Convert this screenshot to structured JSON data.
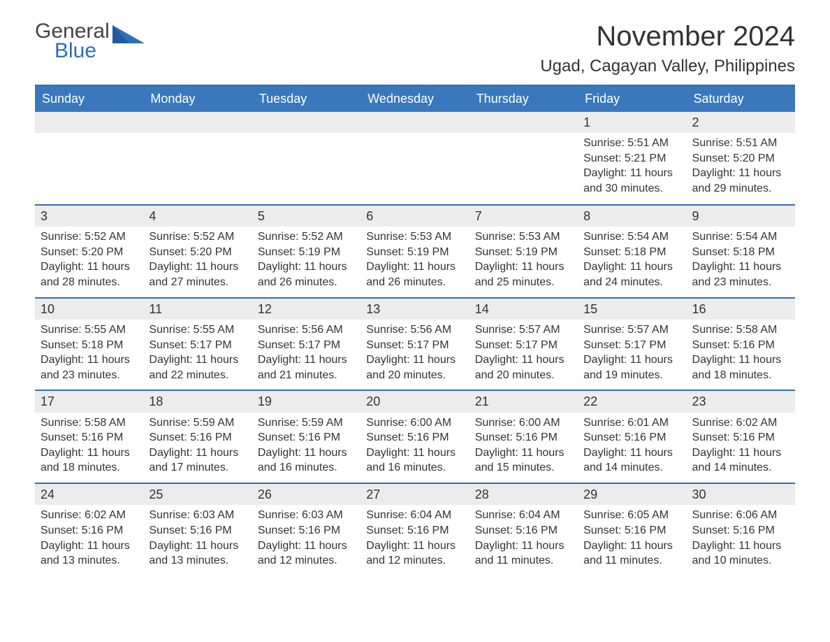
{
  "logo": {
    "text1": "General",
    "text2": "Blue"
  },
  "title": "November 2024",
  "location": "Ugad, Cagayan Valley, Philippines",
  "colors": {
    "header_bg": "#3a78bd",
    "header_text": "#ffffff",
    "border": "#2f6eb5",
    "daynum_bg": "#ececec",
    "text": "#333333",
    "logo_accent": "#2f6eb5"
  },
  "weekdays": [
    "Sunday",
    "Monday",
    "Tuesday",
    "Wednesday",
    "Thursday",
    "Friday",
    "Saturday"
  ],
  "weeks": [
    [
      {
        "empty": true
      },
      {
        "empty": true
      },
      {
        "empty": true
      },
      {
        "empty": true
      },
      {
        "empty": true
      },
      {
        "day": "1",
        "sunrise": "Sunrise: 5:51 AM",
        "sunset": "Sunset: 5:21 PM",
        "daylight": "Daylight: 11 hours and 30 minutes."
      },
      {
        "day": "2",
        "sunrise": "Sunrise: 5:51 AM",
        "sunset": "Sunset: 5:20 PM",
        "daylight": "Daylight: 11 hours and 29 minutes."
      }
    ],
    [
      {
        "day": "3",
        "sunrise": "Sunrise: 5:52 AM",
        "sunset": "Sunset: 5:20 PM",
        "daylight": "Daylight: 11 hours and 28 minutes."
      },
      {
        "day": "4",
        "sunrise": "Sunrise: 5:52 AM",
        "sunset": "Sunset: 5:20 PM",
        "daylight": "Daylight: 11 hours and 27 minutes."
      },
      {
        "day": "5",
        "sunrise": "Sunrise: 5:52 AM",
        "sunset": "Sunset: 5:19 PM",
        "daylight": "Daylight: 11 hours and 26 minutes."
      },
      {
        "day": "6",
        "sunrise": "Sunrise: 5:53 AM",
        "sunset": "Sunset: 5:19 PM",
        "daylight": "Daylight: 11 hours and 26 minutes."
      },
      {
        "day": "7",
        "sunrise": "Sunrise: 5:53 AM",
        "sunset": "Sunset: 5:19 PM",
        "daylight": "Daylight: 11 hours and 25 minutes."
      },
      {
        "day": "8",
        "sunrise": "Sunrise: 5:54 AM",
        "sunset": "Sunset: 5:18 PM",
        "daylight": "Daylight: 11 hours and 24 minutes."
      },
      {
        "day": "9",
        "sunrise": "Sunrise: 5:54 AM",
        "sunset": "Sunset: 5:18 PM",
        "daylight": "Daylight: 11 hours and 23 minutes."
      }
    ],
    [
      {
        "day": "10",
        "sunrise": "Sunrise: 5:55 AM",
        "sunset": "Sunset: 5:18 PM",
        "daylight": "Daylight: 11 hours and 23 minutes."
      },
      {
        "day": "11",
        "sunrise": "Sunrise: 5:55 AM",
        "sunset": "Sunset: 5:17 PM",
        "daylight": "Daylight: 11 hours and 22 minutes."
      },
      {
        "day": "12",
        "sunrise": "Sunrise: 5:56 AM",
        "sunset": "Sunset: 5:17 PM",
        "daylight": "Daylight: 11 hours and 21 minutes."
      },
      {
        "day": "13",
        "sunrise": "Sunrise: 5:56 AM",
        "sunset": "Sunset: 5:17 PM",
        "daylight": "Daylight: 11 hours and 20 minutes."
      },
      {
        "day": "14",
        "sunrise": "Sunrise: 5:57 AM",
        "sunset": "Sunset: 5:17 PM",
        "daylight": "Daylight: 11 hours and 20 minutes."
      },
      {
        "day": "15",
        "sunrise": "Sunrise: 5:57 AM",
        "sunset": "Sunset: 5:17 PM",
        "daylight": "Daylight: 11 hours and 19 minutes."
      },
      {
        "day": "16",
        "sunrise": "Sunrise: 5:58 AM",
        "sunset": "Sunset: 5:16 PM",
        "daylight": "Daylight: 11 hours and 18 minutes."
      }
    ],
    [
      {
        "day": "17",
        "sunrise": "Sunrise: 5:58 AM",
        "sunset": "Sunset: 5:16 PM",
        "daylight": "Daylight: 11 hours and 18 minutes."
      },
      {
        "day": "18",
        "sunrise": "Sunrise: 5:59 AM",
        "sunset": "Sunset: 5:16 PM",
        "daylight": "Daylight: 11 hours and 17 minutes."
      },
      {
        "day": "19",
        "sunrise": "Sunrise: 5:59 AM",
        "sunset": "Sunset: 5:16 PM",
        "daylight": "Daylight: 11 hours and 16 minutes."
      },
      {
        "day": "20",
        "sunrise": "Sunrise: 6:00 AM",
        "sunset": "Sunset: 5:16 PM",
        "daylight": "Daylight: 11 hours and 16 minutes."
      },
      {
        "day": "21",
        "sunrise": "Sunrise: 6:00 AM",
        "sunset": "Sunset: 5:16 PM",
        "daylight": "Daylight: 11 hours and 15 minutes."
      },
      {
        "day": "22",
        "sunrise": "Sunrise: 6:01 AM",
        "sunset": "Sunset: 5:16 PM",
        "daylight": "Daylight: 11 hours and 14 minutes."
      },
      {
        "day": "23",
        "sunrise": "Sunrise: 6:02 AM",
        "sunset": "Sunset: 5:16 PM",
        "daylight": "Daylight: 11 hours and 14 minutes."
      }
    ],
    [
      {
        "day": "24",
        "sunrise": "Sunrise: 6:02 AM",
        "sunset": "Sunset: 5:16 PM",
        "daylight": "Daylight: 11 hours and 13 minutes."
      },
      {
        "day": "25",
        "sunrise": "Sunrise: 6:03 AM",
        "sunset": "Sunset: 5:16 PM",
        "daylight": "Daylight: 11 hours and 13 minutes."
      },
      {
        "day": "26",
        "sunrise": "Sunrise: 6:03 AM",
        "sunset": "Sunset: 5:16 PM",
        "daylight": "Daylight: 11 hours and 12 minutes."
      },
      {
        "day": "27",
        "sunrise": "Sunrise: 6:04 AM",
        "sunset": "Sunset: 5:16 PM",
        "daylight": "Daylight: 11 hours and 12 minutes."
      },
      {
        "day": "28",
        "sunrise": "Sunrise: 6:04 AM",
        "sunset": "Sunset: 5:16 PM",
        "daylight": "Daylight: 11 hours and 11 minutes."
      },
      {
        "day": "29",
        "sunrise": "Sunrise: 6:05 AM",
        "sunset": "Sunset: 5:16 PM",
        "daylight": "Daylight: 11 hours and 11 minutes."
      },
      {
        "day": "30",
        "sunrise": "Sunrise: 6:06 AM",
        "sunset": "Sunset: 5:16 PM",
        "daylight": "Daylight: 11 hours and 10 minutes."
      }
    ]
  ]
}
